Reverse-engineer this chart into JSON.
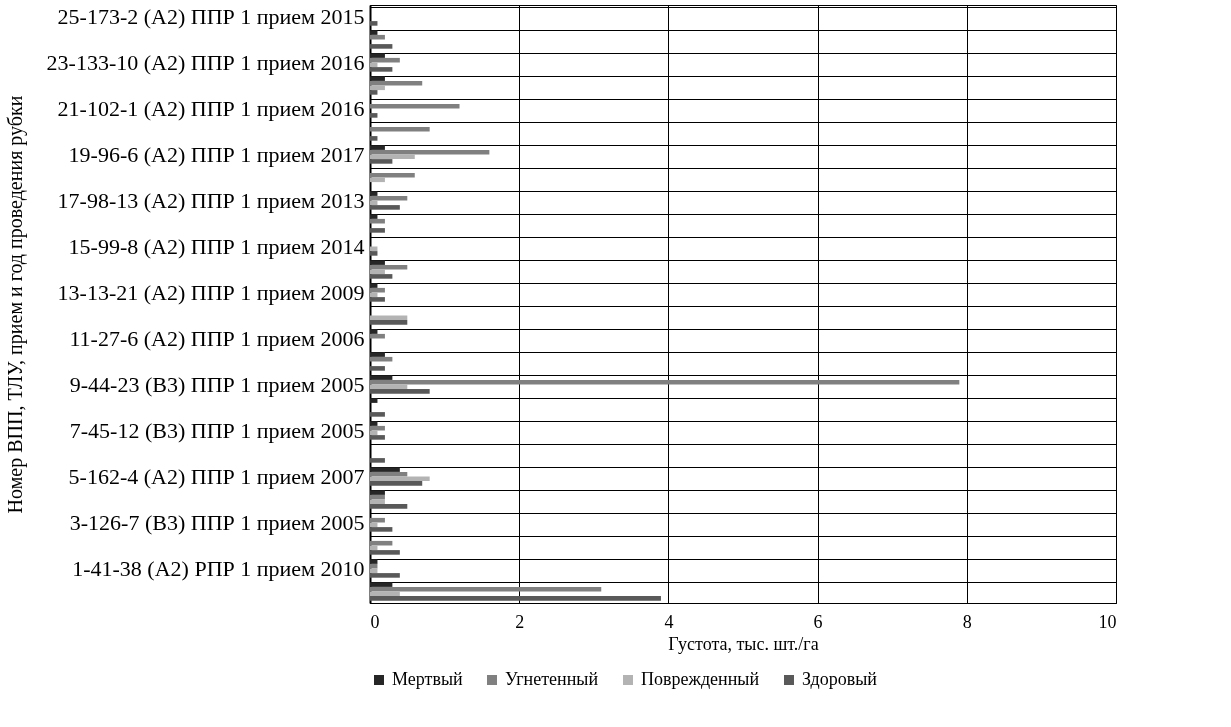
{
  "chart_data": {
    "type": "bar",
    "orientation": "horizontal",
    "categories": [
      "25-173-2 (А2) ППР 1 прием 2015",
      null,
      "23-133-10 (А2) ППР 1 прием 2016",
      null,
      "21-102-1 (А2) ППР 1 прием 2016",
      null,
      "19-96-6 (А2) ППР 1 прием 2017",
      null,
      "17-98-13 (А2) ППР 1 прием 2013",
      null,
      "15-99-8 (А2) ППР 1 прием 2014",
      null,
      "13-13-21 (А2) ППР 1 прием 2009",
      null,
      "11-27-6 (А2) ППР 1 прием 2006",
      null,
      "9-44-23 (В3) ППР 1 прием 2005",
      null,
      "7-45-12 (В3) ППР 1 прием 2005",
      null,
      "5-162-4 (А2) ППР 1 прием 2007",
      null,
      "3-126-7 (В3) ППР 1 прием 2005",
      null,
      "1-41-38 (А2) РПР 1 прием 2010",
      null
    ],
    "series": [
      {
        "name": "Мертвый",
        "color": "#262626",
        "values": [
          0,
          0.1,
          0.2,
          0.2,
          0,
          0,
          0.2,
          0,
          0.1,
          0.1,
          0,
          0.2,
          0.1,
          0,
          0.1,
          0.2,
          0.3,
          0.1,
          0.1,
          0,
          0.4,
          0.2,
          0,
          0,
          0.1,
          0.3
        ]
      },
      {
        "name": "Угнетенный",
        "color": "#808080",
        "values": [
          0,
          0.2,
          0.4,
          0.7,
          1.2,
          0.8,
          1.6,
          0.6,
          0.5,
          0.2,
          0,
          0.5,
          0.2,
          0,
          0.2,
          0.3,
          7.9,
          0,
          0.2,
          0,
          0.5,
          0.2,
          0.2,
          0.3,
          0.1,
          3.1
        ]
      },
      {
        "name": "Поврежденный",
        "color": "#b3b3b3",
        "values": [
          0,
          0,
          0.1,
          0.2,
          0,
          0,
          0.6,
          0.2,
          0.1,
          0,
          0.1,
          0.2,
          0.1,
          0.5,
          0,
          0,
          0.5,
          0,
          0.1,
          0,
          0.8,
          0.2,
          0.1,
          0.1,
          0.1,
          0.4
        ]
      },
      {
        "name": "Здоровый",
        "color": "#595959",
        "values": [
          0.1,
          0.3,
          0.3,
          0.1,
          0.1,
          0.1,
          0.3,
          0,
          0.4,
          0.2,
          0.1,
          0.3,
          0.2,
          0.5,
          0,
          0.2,
          0.8,
          0.2,
          0.2,
          0.2,
          0.7,
          0.5,
          0.3,
          0.4,
          0.4,
          3.9
        ]
      }
    ],
    "xlabel": "Густота, тыс. шт./га",
    "ylabel": "Номер ВПП, ТЛУ, прием и год проведения рубки",
    "xlim": [
      0,
      10
    ],
    "xticks": [
      0,
      2,
      4,
      6,
      8,
      10
    ],
    "grid": true,
    "legend": "bottom"
  }
}
